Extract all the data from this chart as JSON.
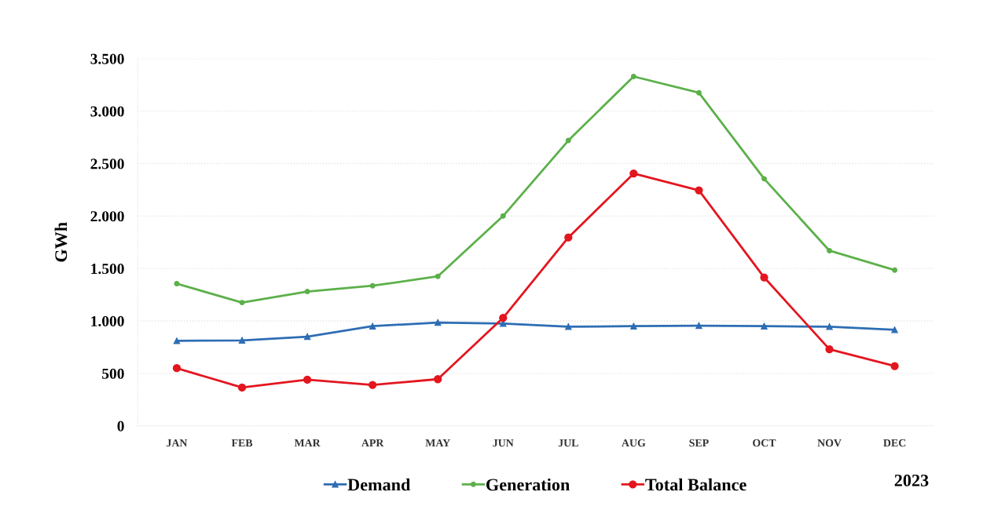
{
  "chart_data": {
    "type": "line",
    "ylabel": "GWh",
    "categories": [
      "JAN",
      "FEB",
      "MAR",
      "APR",
      "MAY",
      "JUN",
      "JUL",
      "AUG",
      "SEP",
      "OCT",
      "NOV",
      "DEC"
    ],
    "series": [
      {
        "name": "Demand",
        "color": "#2e6db4",
        "marker": "triangle",
        "values": [
          810,
          815,
          850,
          950,
          985,
          975,
          945,
          950,
          955,
          950,
          945,
          915
        ]
      },
      {
        "name": "Generation",
        "color": "#5cb04a",
        "marker": "circle",
        "values": [
          1355,
          1175,
          1280,
          1335,
          1425,
          2000,
          2720,
          3330,
          3175,
          2355,
          1670,
          1485
        ]
      },
      {
        "name": "Total Balance",
        "color": "#e3161f",
        "marker": "circle",
        "values": [
          550,
          365,
          440,
          390,
          445,
          1030,
          1795,
          2405,
          2245,
          1415,
          730,
          570
        ]
      }
    ],
    "ylim": [
      0,
      3500
    ],
    "yticks": [
      0,
      {
        "value": 500,
        "label": "500"
      },
      {
        "value": 1000,
        "label": "1.000"
      },
      {
        "value": 1500,
        "label": "1.500"
      },
      {
        "value": 2000,
        "label": "2.000"
      },
      {
        "value": 2500,
        "label": "2.500"
      },
      {
        "value": 3000,
        "label": "3.000"
      },
      {
        "value": 3500,
        "label": "3.500"
      }
    ],
    "grid": "y",
    "legend": "bottom",
    "line_style": "solid",
    "annotations": [
      "2023"
    ]
  }
}
